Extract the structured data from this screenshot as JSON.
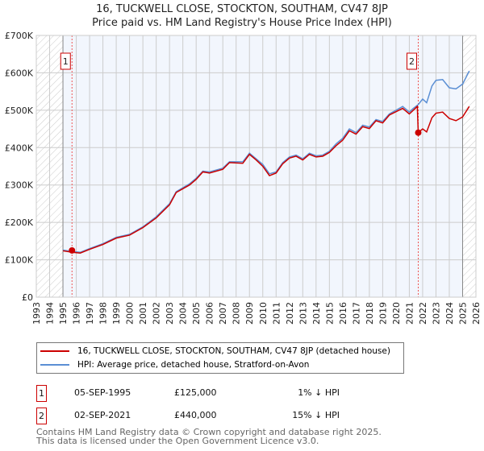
{
  "chart_data": {
    "type": "line",
    "title": "16, TUCKWELL CLOSE, STOCKTON, SOUTHAM, CV47 8JP",
    "subtitle": "Price paid vs. HM Land Registry's House Price Index (HPI)",
    "xlim": [
      1993,
      2026
    ],
    "ylim": [
      0,
      700000
    ],
    "x_ticks": [
      "1993",
      "1994",
      "1995",
      "1996",
      "1997",
      "1998",
      "1999",
      "2000",
      "2001",
      "2002",
      "2003",
      "2004",
      "2005",
      "2006",
      "2007",
      "2008",
      "2009",
      "2010",
      "2011",
      "2012",
      "2013",
      "2014",
      "2015",
      "2016",
      "2017",
      "2018",
      "2019",
      "2020",
      "2021",
      "2022",
      "2023",
      "2024",
      "2025",
      "2026"
    ],
    "y_ticks": [
      {
        "v": 0,
        "label": "£0"
      },
      {
        "v": 100000,
        "label": "£100K"
      },
      {
        "v": 200000,
        "label": "£200K"
      },
      {
        "v": 300000,
        "label": "£300K"
      },
      {
        "v": 400000,
        "label": "£400K"
      },
      {
        "v": 500000,
        "label": "£500K"
      },
      {
        "v": 600000,
        "label": "£600K"
      },
      {
        "v": 700000,
        "label": "£700K"
      }
    ],
    "grid": true,
    "series": [
      {
        "name": "16, TUCKWELL CLOSE, STOCKTON, SOUTHAM, CV47 8JP (detached house)",
        "color": "#cc0000",
        "x": [
          1995.0,
          1995.7,
          1996.3,
          1997,
          1998,
          1999,
          2000,
          2001,
          2002,
          2003,
          2003.5,
          2004.5,
          2005,
          2005.5,
          2006,
          2007,
          2007.5,
          2008.5,
          2009,
          2009.5,
          2010,
          2010.5,
          2011,
          2011.5,
          2012,
          2012.5,
          2013,
          2013.5,
          2014,
          2014.5,
          2015,
          2015.5,
          2016,
          2016.5,
          2017,
          2017.5,
          2018,
          2018.5,
          2019,
          2019.5,
          2020,
          2020.5,
          2021,
          2021.3,
          2021.6,
          2021.67,
          2022,
          2022.3,
          2022.7,
          2023,
          2023.5,
          2024,
          2024.5,
          2025,
          2025.5
        ],
        "y": [
          124000,
          120000,
          118000,
          128000,
          141000,
          158000,
          166000,
          186000,
          212000,
          247000,
          280000,
          300000,
          315000,
          335000,
          332000,
          342000,
          360000,
          358000,
          382000,
          367000,
          350000,
          325000,
          332000,
          357000,
          372000,
          377000,
          367000,
          382000,
          375000,
          377000,
          387000,
          405000,
          420000,
          445000,
          436000,
          456000,
          451000,
          472000,
          466000,
          487000,
          496000,
          505000,
          490000,
          500000,
          510000,
          440000,
          450000,
          442000,
          480000,
          492000,
          495000,
          478000,
          472000,
          482000,
          510000
        ]
      },
      {
        "name": "HPI: Average price, detached house, Stratford-on-Avon",
        "color": "#5b8fd4",
        "x": [
          1995.0,
          1995.7,
          1996.3,
          1997,
          1998,
          1999,
          2000,
          2001,
          2002,
          2003,
          2003.5,
          2004.5,
          2005,
          2005.5,
          2006,
          2007,
          2007.5,
          2008.5,
          2009,
          2009.5,
          2010,
          2010.5,
          2011,
          2011.5,
          2012,
          2012.5,
          2013,
          2013.5,
          2014,
          2014.5,
          2015,
          2015.5,
          2016,
          2016.5,
          2017,
          2017.5,
          2018,
          2018.5,
          2019,
          2019.5,
          2020,
          2020.5,
          2021,
          2021.3,
          2021.67,
          2022,
          2022.3,
          2022.7,
          2023,
          2023.5,
          2024,
          2024.5,
          2025,
          2025.5
        ],
        "y": [
          126000,
          122000,
          120000,
          130000,
          143000,
          160000,
          168000,
          188000,
          215000,
          250000,
          282000,
          303000,
          318000,
          337000,
          335000,
          345000,
          362000,
          362000,
          385000,
          370000,
          355000,
          330000,
          335000,
          360000,
          375000,
          380000,
          370000,
          385000,
          378000,
          380000,
          390000,
          410000,
          425000,
          450000,
          440000,
          460000,
          455000,
          475000,
          470000,
          490000,
          500000,
          510000,
          495000,
          505000,
          515000,
          530000,
          520000,
          565000,
          580000,
          582000,
          560000,
          557000,
          570000,
          605000
        ]
      }
    ],
    "sales": [
      {
        "label": "1",
        "x": 1995.68,
        "y": 125000
      },
      {
        "label": "2",
        "x": 2021.67,
        "y": 440000
      }
    ],
    "shaded_range": [
      1995,
      2025
    ]
  },
  "legend": {
    "red": "16, TUCKWELL CLOSE, STOCKTON, SOUTHAM, CV47 8JP (detached house)",
    "blue": "HPI: Average price, detached house, Stratford-on-Avon"
  },
  "sales_table": [
    {
      "num": "1",
      "date": "05-SEP-1995",
      "price": "£125,000",
      "hpi": "1% ↓ HPI"
    },
    {
      "num": "2",
      "date": "02-SEP-2021",
      "price": "£440,000",
      "hpi": "15% ↓ HPI"
    }
  ],
  "footer": [
    "Contains HM Land Registry data © Crown copyright and database right 2025.",
    "This data is licensed under the Open Government Licence v3.0."
  ]
}
